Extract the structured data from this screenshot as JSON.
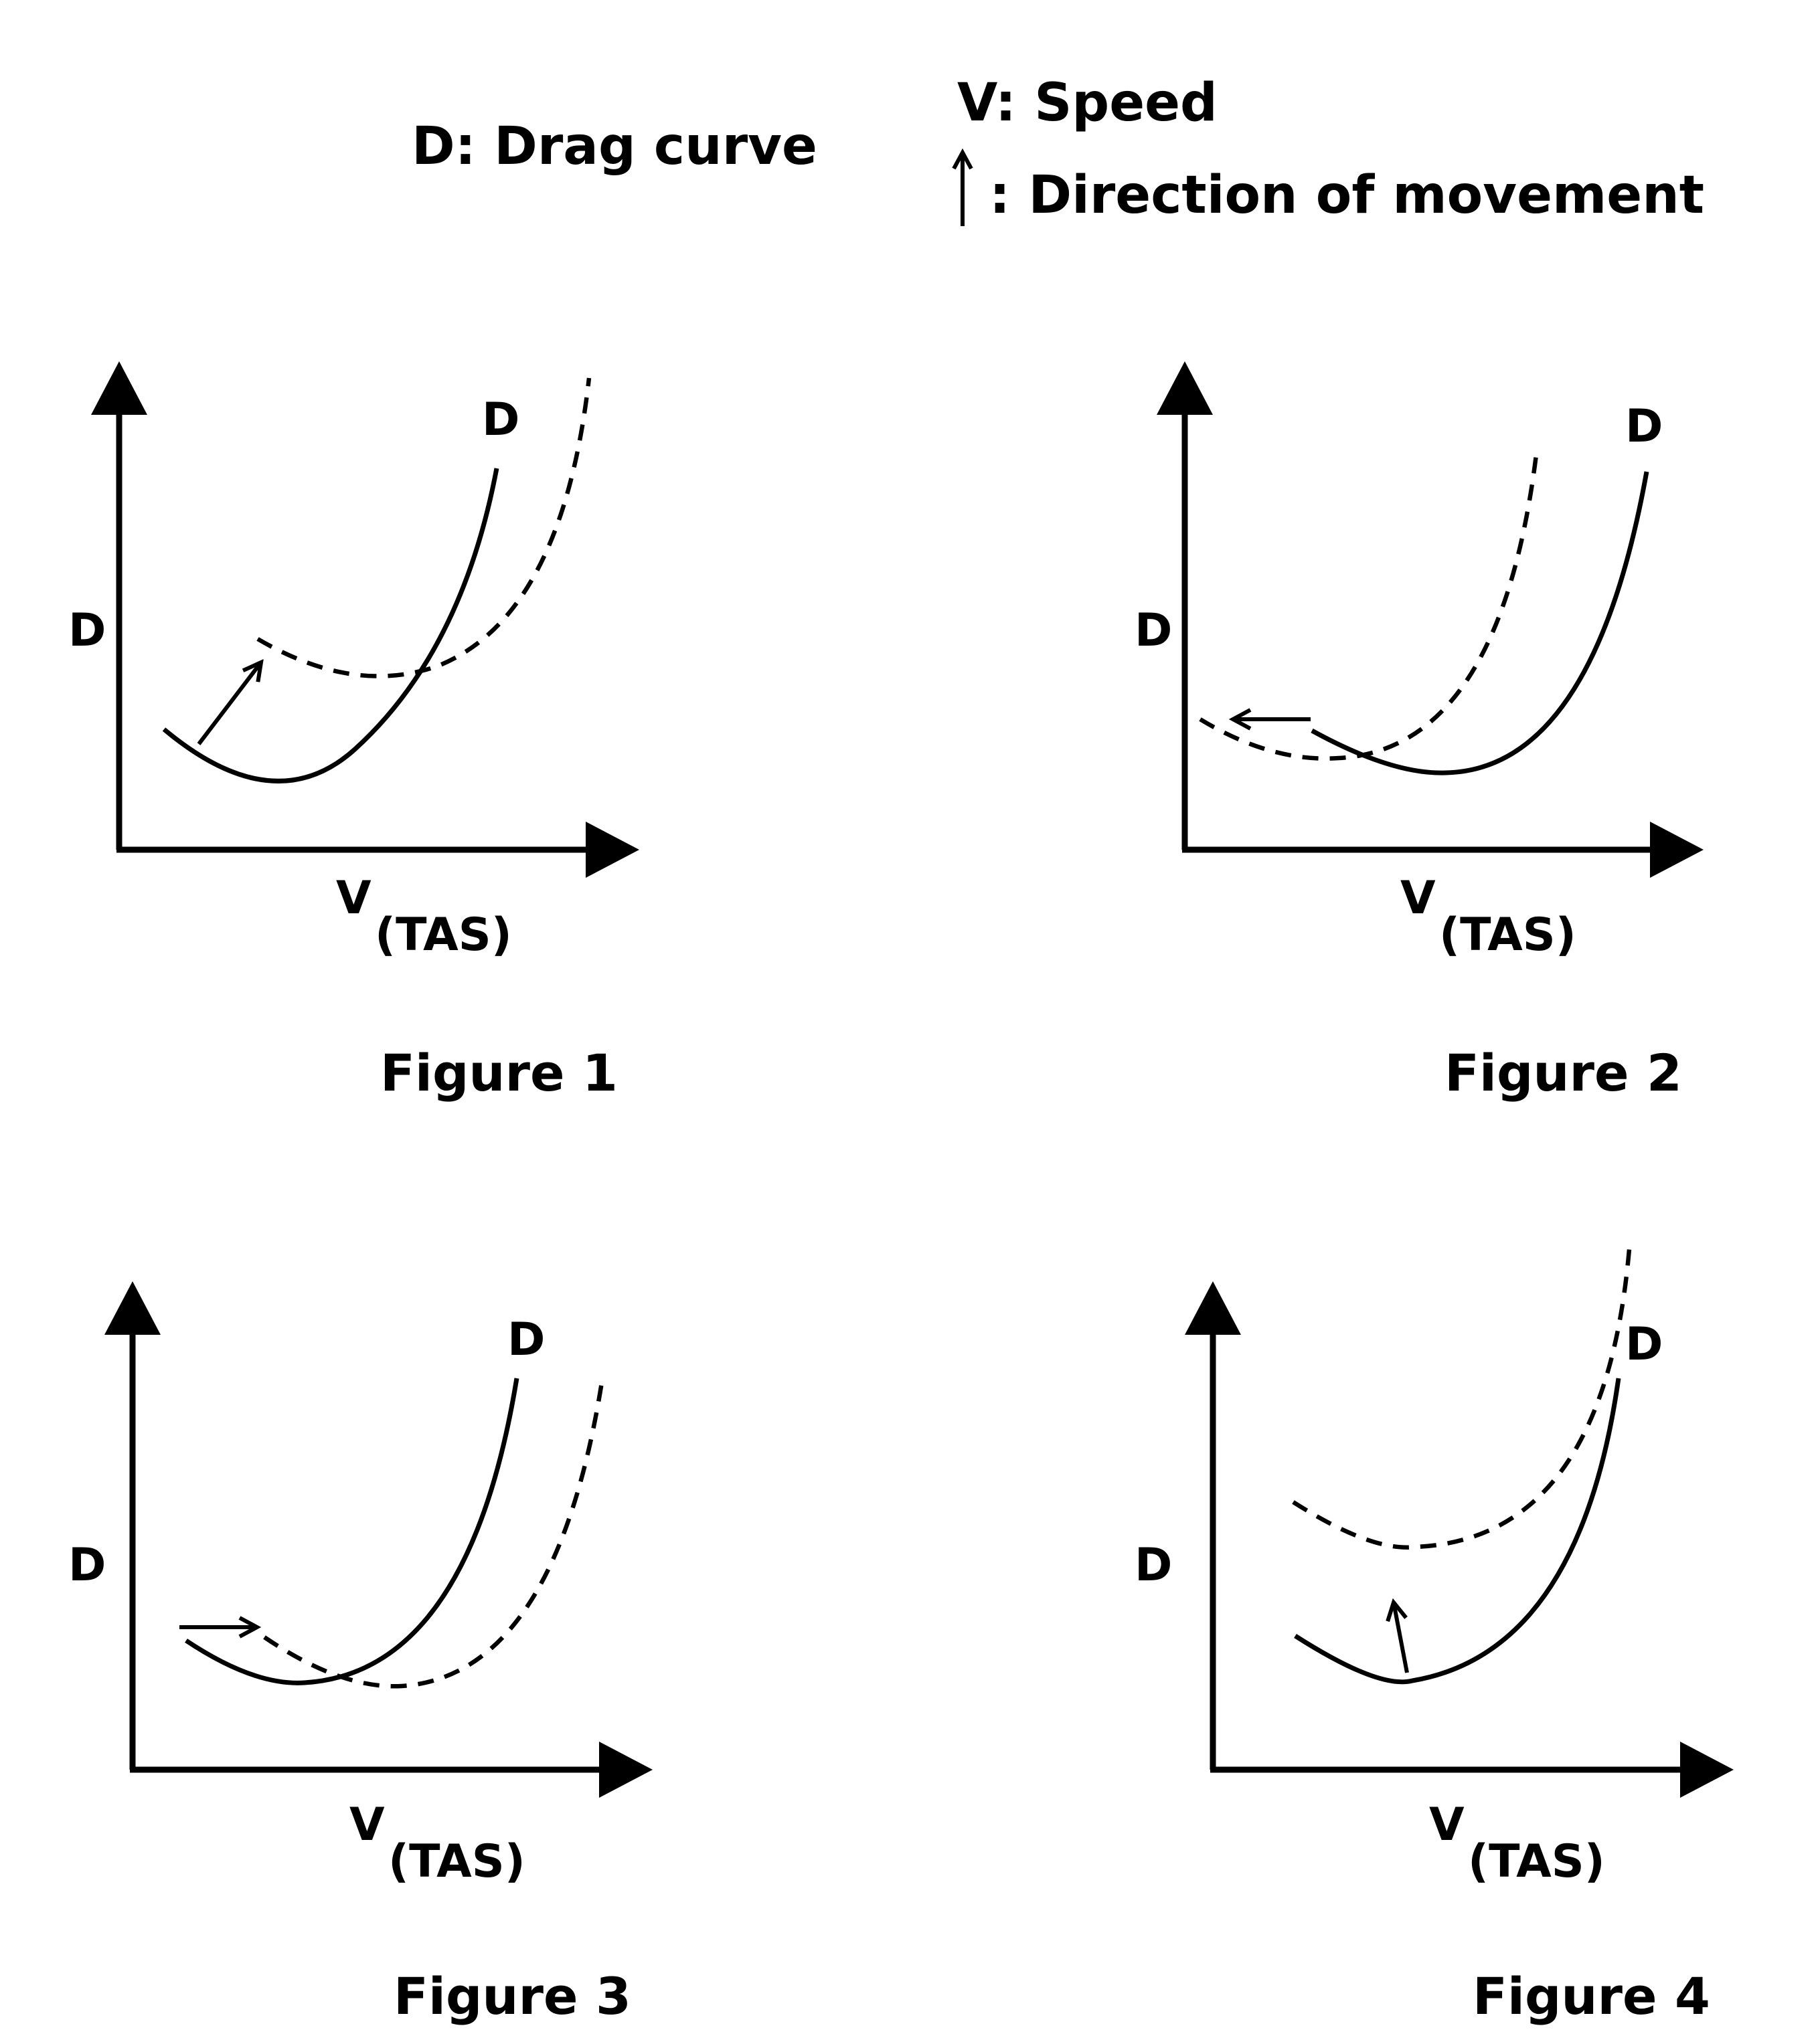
{
  "legend": {
    "drag": "D: Drag curve",
    "speed": "V: Speed",
    "direction": ": Direction of movement",
    "direction_icon": "arrow-up-icon"
  },
  "figures": [
    {
      "caption": "Figure 1",
      "y_label": "D",
      "x_label": "V",
      "x_sub": "(TAS)",
      "curve_label": "D",
      "arrow_direction": "up-right"
    },
    {
      "caption": "Figure 2",
      "y_label": "D",
      "x_label": "V",
      "x_sub": "(TAS)",
      "curve_label": "D",
      "arrow_direction": "left"
    },
    {
      "caption": "Figure 3",
      "y_label": "D",
      "x_label": "V",
      "x_sub": "(TAS)",
      "curve_label": "D",
      "arrow_direction": "right"
    },
    {
      "caption": "Figure 4",
      "y_label": "D",
      "x_label": "V",
      "x_sub": "(TAS)",
      "curve_label": "D",
      "arrow_direction": "up"
    }
  ],
  "colors": {
    "ink": "#000000",
    "background": "#ffffff"
  }
}
